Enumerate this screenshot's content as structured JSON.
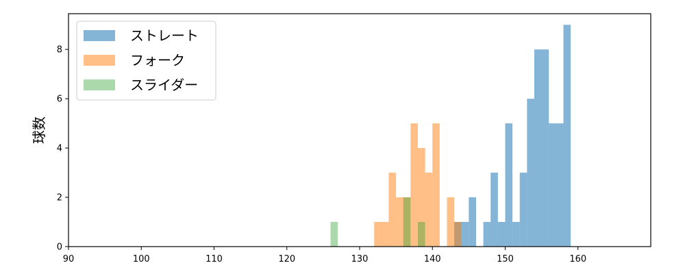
{
  "chart_data": {
    "type": "histogram",
    "xlabel": "",
    "ylabel": "球数",
    "xlim": [
      90,
      170
    ],
    "ylim": [
      0,
      9.45
    ],
    "x_ticks": [
      90,
      100,
      110,
      120,
      130,
      140,
      150,
      160
    ],
    "y_ticks": [
      0,
      2,
      4,
      6,
      8
    ],
    "grid": false,
    "legend_position": "top-left",
    "bin_width": 1,
    "series": [
      {
        "name": "ストレート",
        "color": "#1f77b4",
        "opacity": 0.55,
        "bins": [
          {
            "start": 143,
            "end": 144,
            "count": 1
          },
          {
            "start": 144,
            "end": 145,
            "count": 1
          },
          {
            "start": 145,
            "end": 146,
            "count": 2
          },
          {
            "start": 147,
            "end": 148,
            "count": 1
          },
          {
            "start": 148,
            "end": 149,
            "count": 3
          },
          {
            "start": 149,
            "end": 150,
            "count": 1
          },
          {
            "start": 150,
            "end": 151,
            "count": 5
          },
          {
            "start": 151,
            "end": 152,
            "count": 1
          },
          {
            "start": 152,
            "end": 153,
            "count": 3
          },
          {
            "start": 153,
            "end": 154,
            "count": 6
          },
          {
            "start": 154,
            "end": 156,
            "count": 8
          },
          {
            "start": 156,
            "end": 158,
            "count": 5
          },
          {
            "start": 158,
            "end": 159,
            "count": 9
          }
        ]
      },
      {
        "name": "フォーク",
        "color": "#ff7f0e",
        "opacity": 0.5,
        "bins": [
          {
            "start": 132,
            "end": 134,
            "count": 1
          },
          {
            "start": 134,
            "end": 135,
            "count": 3
          },
          {
            "start": 135,
            "end": 137,
            "count": 2
          },
          {
            "start": 137,
            "end": 138,
            "count": 5
          },
          {
            "start": 138,
            "end": 139,
            "count": 4
          },
          {
            "start": 139,
            "end": 140,
            "count": 3
          },
          {
            "start": 140,
            "end": 141,
            "count": 5
          },
          {
            "start": 142,
            "end": 143,
            "count": 2
          },
          {
            "start": 143,
            "end": 144,
            "count": 1
          }
        ]
      },
      {
        "name": "スライダー",
        "color": "#2ca02c",
        "opacity": 0.4,
        "bins": [
          {
            "start": 126,
            "end": 127,
            "count": 1
          },
          {
            "start": 136,
            "end": 137,
            "count": 2
          },
          {
            "start": 138,
            "end": 139,
            "count": 1
          }
        ]
      }
    ]
  }
}
